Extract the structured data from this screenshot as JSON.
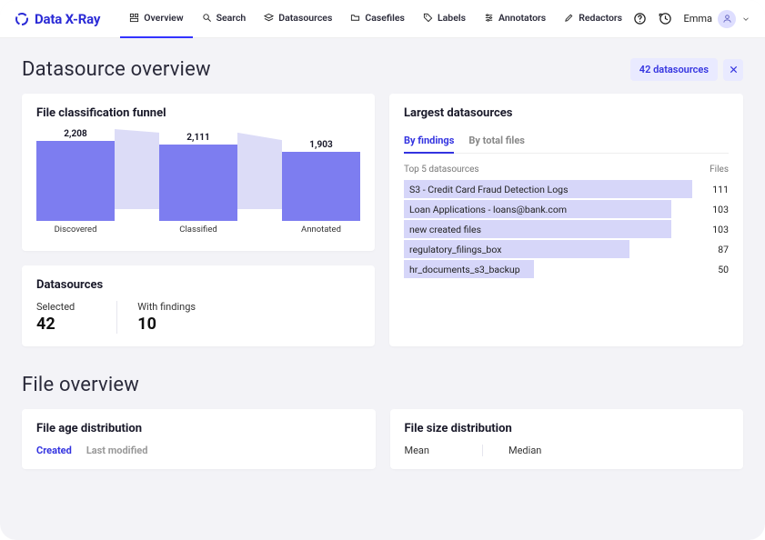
{
  "brand": {
    "name": "Data X-Ray",
    "color": "#2b2bd6"
  },
  "nav": {
    "items": [
      {
        "label": "Overview",
        "icon": "layout",
        "active": true
      },
      {
        "label": "Search",
        "icon": "search",
        "active": false
      },
      {
        "label": "Datasources",
        "icon": "stack",
        "active": false
      },
      {
        "label": "Casefiles",
        "icon": "folder",
        "active": false
      },
      {
        "label": "Labels",
        "icon": "tag",
        "active": false
      },
      {
        "label": "Annotators",
        "icon": "sliders",
        "active": false
      },
      {
        "label": "Redactors",
        "icon": "pen",
        "active": false
      }
    ],
    "user": "Emma"
  },
  "page": {
    "title": "Datasource overview",
    "pill": "42 datasources"
  },
  "funnel": {
    "title": "File classification funnel",
    "max": 2208,
    "bar_color": "#7d7df0",
    "connector_color": "#dcdcf7",
    "bars": [
      {
        "label": "Discovered",
        "value": 2208,
        "value_fmt": "2,208"
      },
      {
        "label": "Classified",
        "value": 2111,
        "value_fmt": "2,111"
      },
      {
        "label": "Annotated",
        "value": 1903,
        "value_fmt": "1,903"
      }
    ]
  },
  "ds_stats": {
    "title": "Datasources",
    "cols": [
      {
        "label": "Selected",
        "value": "42"
      },
      {
        "label": "With findings",
        "value": "10"
      }
    ]
  },
  "largest": {
    "title": "Largest datasources",
    "tabs": [
      {
        "label": "By findings",
        "active": true
      },
      {
        "label": "By total files",
        "active": false
      }
    ],
    "header_left": "Top 5 datasources",
    "header_right": "Files",
    "max": 111,
    "bar_color": "#d6d6f9",
    "rows": [
      {
        "label": "S3 - Credit Card Fraud Detection Logs",
        "value": 111
      },
      {
        "label": "Loan Applications - loans@bank.com",
        "value": 103
      },
      {
        "label": "new created files",
        "value": 103
      },
      {
        "label": "regulatory_filings_box",
        "value": 87
      },
      {
        "label": "hr_documents_s3_backup",
        "value": 50
      }
    ]
  },
  "file_overview": {
    "title": "File overview",
    "age": {
      "title": "File age distribution",
      "tabs": [
        {
          "label": "Created",
          "active": true
        },
        {
          "label": "Last modified",
          "active": false
        }
      ]
    },
    "size": {
      "title": "File size distribution",
      "cols": [
        {
          "label": "Mean"
        },
        {
          "label": "Median"
        }
      ]
    }
  },
  "colors": {
    "page_bg": "#f3f3f7",
    "accent": "#3333e0",
    "text": "#1a1a2a"
  }
}
